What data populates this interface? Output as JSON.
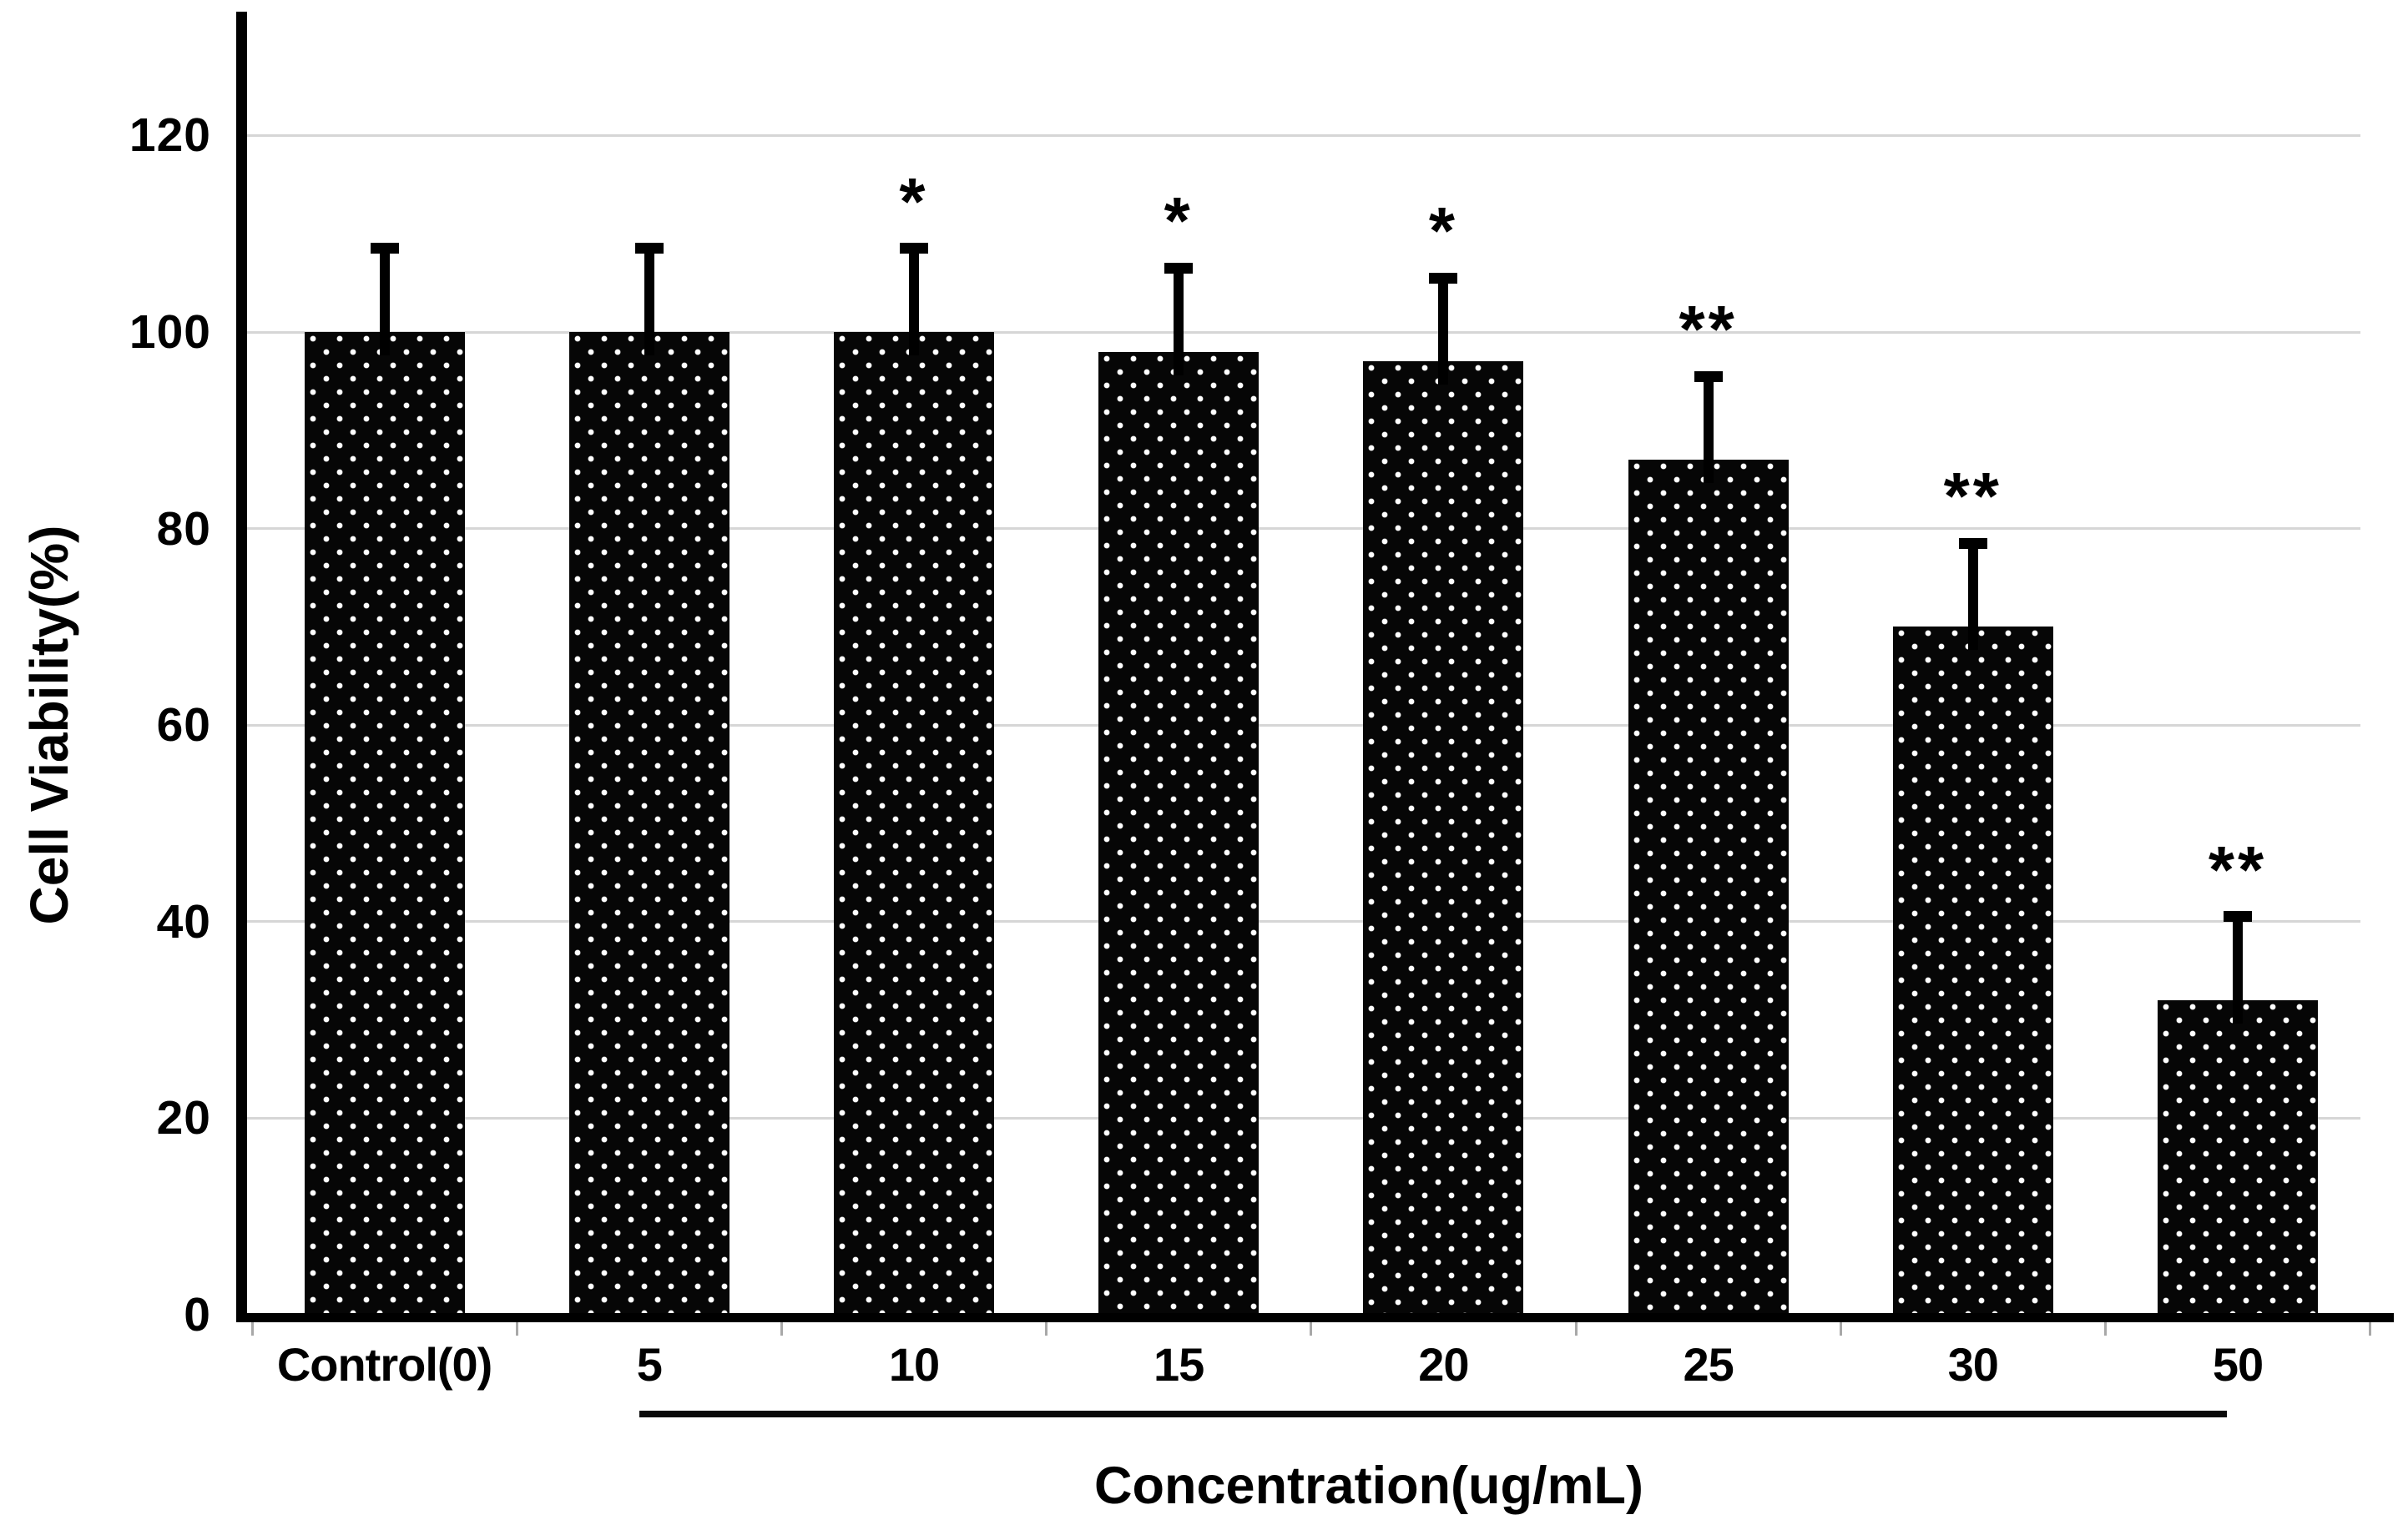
{
  "chart_data": {
    "type": "bar",
    "title": "",
    "categories": [
      "Control(0)",
      "5",
      "10",
      "15",
      "20",
      "25",
      "30",
      "50"
    ],
    "values": [
      100,
      100,
      100,
      98,
      97,
      87,
      70,
      32
    ],
    "errors": [
      8.5,
      8.5,
      8.5,
      8.5,
      8.5,
      8.5,
      8.5,
      8.5
    ],
    "significance": [
      "",
      "",
      "*",
      "*",
      "*",
      "**",
      "**",
      "**"
    ],
    "xlabel": "Concentration(ug/mL)",
    "ylabel": "Cell Viability(%)",
    "ylim": [
      0,
      130
    ],
    "yticks": [
      0,
      20,
      40,
      60,
      80,
      100,
      120
    ],
    "grid": true,
    "legend": "none",
    "bar_fill": "#060606",
    "bar_pattern": "white-polka-dots",
    "gridline_color": "#d6d6d6",
    "error_bar_direction": "upper-only",
    "group_underline": {
      "from_category": "5",
      "to_category": "50"
    }
  }
}
